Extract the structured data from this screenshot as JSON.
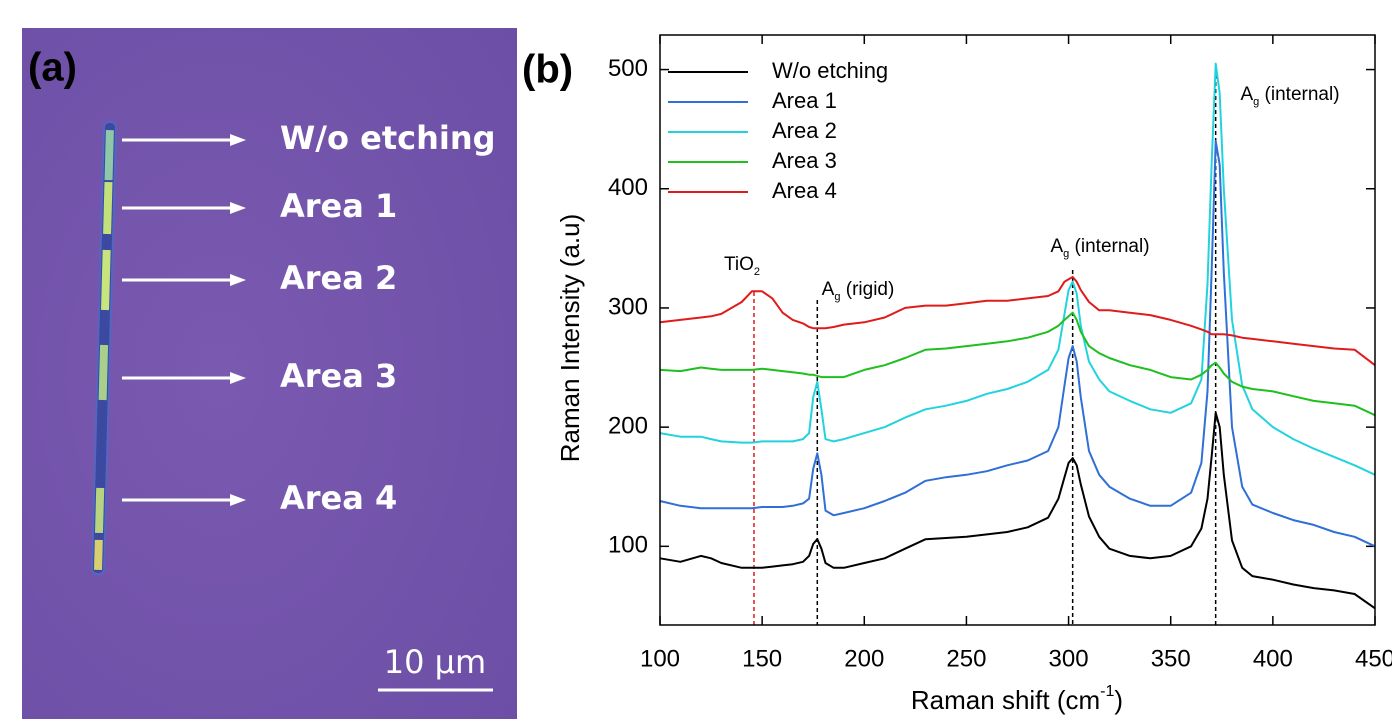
{
  "panel_a": {
    "label": "(a)",
    "items": [
      "W/o etching",
      "Area 1",
      "Area 2",
      "Area 3",
      "Area 4"
    ],
    "scale_label": "10 μm"
  },
  "chart_data": {
    "type": "line",
    "panel_label": "(b)",
    "x_label": "Raman shift (cm",
    "x_label_sup": "-1",
    "x_label_end": ")",
    "y_label": "Raman Intensity (a.u)",
    "xlim": [
      100,
      450
    ],
    "ylim": [
      34,
      529
    ],
    "xticks": [
      100,
      150,
      200,
      250,
      300,
      350,
      400,
      450
    ],
    "yticks": [
      100,
      200,
      300,
      400,
      500
    ],
    "legend": "upper left",
    "x": [
      100,
      110,
      120,
      125,
      130,
      140,
      145,
      150,
      155,
      160,
      165,
      170,
      173,
      175,
      177,
      179,
      181,
      185,
      190,
      200,
      210,
      220,
      230,
      240,
      250,
      260,
      270,
      280,
      290,
      295,
      298,
      300,
      302,
      304,
      306,
      310,
      315,
      320,
      330,
      340,
      350,
      360,
      365,
      368,
      370,
      372,
      374,
      376,
      380,
      385,
      390,
      400,
      410,
      420,
      430,
      440,
      450
    ],
    "series": [
      {
        "name": "W/o etching",
        "color": "#000000",
        "values": [
          90,
          87,
          92,
          90,
          86,
          82,
          82,
          82,
          83,
          84,
          85,
          87,
          92,
          102,
          106,
          98,
          86,
          82,
          82,
          86,
          90,
          98,
          106,
          107,
          108,
          110,
          112,
          116,
          124,
          140,
          158,
          170,
          174,
          168,
          152,
          125,
          108,
          98,
          92,
          90,
          92,
          100,
          115,
          140,
          175,
          212,
          200,
          160,
          105,
          82,
          75,
          72,
          68,
          65,
          63,
          60,
          48
        ]
      },
      {
        "name": "Area 1",
        "color": "#2f6fd6",
        "values": [
          138,
          134,
          132,
          132,
          132,
          132,
          132,
          133,
          133,
          133,
          134,
          136,
          140,
          165,
          178,
          160,
          130,
          126,
          128,
          132,
          138,
          145,
          155,
          158,
          160,
          163,
          168,
          172,
          180,
          200,
          235,
          258,
          268,
          255,
          225,
          180,
          160,
          150,
          140,
          134,
          134,
          145,
          170,
          230,
          330,
          440,
          420,
          330,
          200,
          150,
          135,
          128,
          122,
          118,
          112,
          108,
          100
        ]
      },
      {
        "name": "Area 2",
        "color": "#22d3de",
        "values": [
          195,
          192,
          192,
          190,
          188,
          187,
          187,
          188,
          188,
          188,
          188,
          190,
          195,
          225,
          238,
          215,
          190,
          188,
          190,
          195,
          200,
          208,
          215,
          218,
          222,
          228,
          232,
          238,
          248,
          265,
          295,
          315,
          322,
          312,
          285,
          255,
          240,
          230,
          222,
          215,
          212,
          220,
          240,
          320,
          420,
          505,
          480,
          400,
          290,
          235,
          215,
          200,
          190,
          182,
          175,
          168,
          160
        ]
      },
      {
        "name": "Area 3",
        "color": "#1fbf1f",
        "values": [
          248,
          247,
          250,
          249,
          248,
          248,
          248,
          249,
          248,
          247,
          246,
          245,
          244,
          244,
          243,
          242,
          242,
          242,
          242,
          248,
          252,
          258,
          265,
          266,
          268,
          270,
          272,
          275,
          280,
          285,
          290,
          293,
          296,
          290,
          280,
          268,
          262,
          258,
          252,
          248,
          242,
          240,
          244,
          248,
          252,
          254,
          250,
          245,
          238,
          234,
          232,
          230,
          226,
          222,
          220,
          218,
          210
        ]
      },
      {
        "name": "Area 4",
        "color": "#e01b1b",
        "values": [
          288,
          290,
          292,
          293,
          295,
          305,
          314,
          314,
          308,
          296,
          290,
          287,
          284,
          283,
          283,
          283,
          283,
          284,
          286,
          288,
          292,
          300,
          302,
          302,
          304,
          306,
          306,
          308,
          310,
          314,
          322,
          324,
          326,
          322,
          315,
          305,
          298,
          298,
          296,
          294,
          290,
          285,
          282,
          280,
          278,
          278,
          278,
          278,
          277,
          275,
          274,
          272,
          270,
          268,
          266,
          265,
          252
        ]
      }
    ],
    "annotations": [
      {
        "text": "TiO",
        "sub": "2",
        "suffix": "",
        "x": 146,
        "color": "#e01b1b"
      },
      {
        "text": "A",
        "sub": "g",
        "suffix": " (rigid)",
        "x": 177,
        "color": "#000000"
      },
      {
        "text": "A",
        "sub": "g",
        "suffix": " (internal)",
        "x": 302,
        "color": "#000000"
      },
      {
        "text": "A",
        "sub": "g",
        "suffix": " (internal)",
        "x": 372,
        "color": "#000000"
      }
    ]
  }
}
